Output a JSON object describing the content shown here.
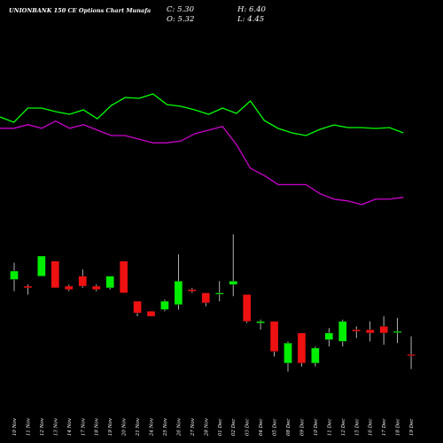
{
  "header": {
    "title": "UNIONBANK 150  CE Options  Chart Munafa",
    "close_label": "C: 5.30",
    "open_label": "O: 5.32",
    "high_label": "H: 6.40",
    "low_label": "L: 4.45"
  },
  "colors": {
    "background": "#000000",
    "up_candle": "#00ee00",
    "down_candle": "#ee1111",
    "wick": "#dddddd",
    "line_green": "#00ff00",
    "line_magenta": "#cc00cc"
  },
  "chart_data": {
    "type": "candlestick",
    "title": "UNIONBANK 150  CE Options  Chart Munafa",
    "dates": [
      "10 Nov",
      "11 Nov",
      "12 Nov",
      "13 Nov",
      "14 Nov",
      "17 Nov",
      "18 Nov",
      "19 Nov",
      "20 Nov",
      "21 Nov",
      "24 Nov",
      "25 Nov",
      "26 Nov",
      "27 Nov",
      "28 Nov",
      "01 Dec",
      "02 Dec",
      "03 Dec",
      "04 Dec",
      "05 Dec",
      "08 Dec",
      "09 Dec",
      "10 Dec",
      "11 Dec",
      "12 Dec",
      "15 Dec",
      "16 Dec",
      "17 Dec",
      "18 Dec",
      "19 Dec"
    ],
    "ohlc": [
      {
        "open": 9.8,
        "high": 10.8,
        "low": 9.1,
        "close": 10.3
      },
      {
        "open": 9.4,
        "high": 9.5,
        "low": 8.9,
        "close": 9.3
      },
      {
        "open": 10.0,
        "high": 11.2,
        "low": 10.0,
        "close": 11.2
      },
      {
        "open": 10.9,
        "high": 10.9,
        "low": 9.3,
        "close": 9.3
      },
      {
        "open": 9.4,
        "high": 9.5,
        "low": 9.1,
        "close": 9.2
      },
      {
        "open": 10.0,
        "high": 10.4,
        "low": 9.3,
        "close": 9.4
      },
      {
        "open": 9.4,
        "high": 9.5,
        "low": 9.1,
        "close": 9.2
      },
      {
        "open": 9.3,
        "high": 10.0,
        "low": 9.2,
        "close": 10.0
      },
      {
        "open": 10.9,
        "high": 10.9,
        "low": 9.0,
        "close": 9.0
      },
      {
        "open": 8.5,
        "high": 8.5,
        "low": 7.6,
        "close": 7.8
      },
      {
        "open": 7.9,
        "high": 7.9,
        "low": 7.6,
        "close": 7.6
      },
      {
        "open": 8.0,
        "high": 8.6,
        "low": 7.9,
        "close": 8.5
      },
      {
        "open": 8.3,
        "high": 11.3,
        "low": 8.0,
        "close": 9.7
      },
      {
        "open": 9.2,
        "high": 9.3,
        "low": 9.0,
        "close": 9.1
      },
      {
        "open": 9.0,
        "high": 9.0,
        "low": 8.2,
        "close": 8.4
      },
      {
        "open": 9.0,
        "high": 9.7,
        "low": 8.5,
        "close": 9.0
      },
      {
        "open": 9.5,
        "high": 12.5,
        "low": 8.8,
        "close": 9.7
      },
      {
        "open": 8.9,
        "high": 8.9,
        "low": 7.2,
        "close": 7.3
      },
      {
        "open": 7.2,
        "high": 7.4,
        "low": 6.8,
        "close": 7.3
      },
      {
        "open": 7.3,
        "high": 7.3,
        "low": 5.2,
        "close": 5.5
      },
      {
        "open": 4.8,
        "high": 6.1,
        "low": 4.3,
        "close": 6.0
      },
      {
        "open": 6.6,
        "high": 6.6,
        "low": 4.6,
        "close": 4.8
      },
      {
        "open": 4.8,
        "high": 5.8,
        "low": 4.6,
        "close": 5.7
      },
      {
        "open": 6.2,
        "high": 6.9,
        "low": 5.8,
        "close": 6.6
      },
      {
        "open": 6.1,
        "high": 7.4,
        "low": 5.8,
        "close": 7.3
      },
      {
        "open": 6.8,
        "high": 7.0,
        "low": 6.3,
        "close": 6.7
      },
      {
        "open": 6.8,
        "high": 7.3,
        "low": 6.1,
        "close": 6.6
      },
      {
        "open": 7.0,
        "high": 7.6,
        "low": 5.9,
        "close": 6.6
      },
      {
        "open": 6.7,
        "high": 7.5,
        "low": 6.0,
        "close": 6.7
      },
      {
        "open": 5.32,
        "high": 6.4,
        "low": 4.45,
        "close": 5.3
      }
    ],
    "green_line": [
      100,
      94,
      110,
      110,
      106,
      103,
      108,
      98,
      113,
      122,
      121,
      126,
      114,
      112,
      108,
      103,
      110,
      104,
      118,
      96,
      87,
      82,
      79,
      86,
      91,
      88,
      88,
      87,
      88,
      82
    ],
    "magenta_line": [
      44,
      44,
      46,
      44,
      48,
      44,
      46,
      43,
      40,
      40,
      38,
      36,
      36,
      37,
      41,
      43,
      45,
      35,
      22,
      18,
      13,
      13,
      13,
      8,
      5,
      4,
      2,
      5,
      5,
      6
    ],
    "price_range": [
      4.0,
      13.0
    ]
  }
}
